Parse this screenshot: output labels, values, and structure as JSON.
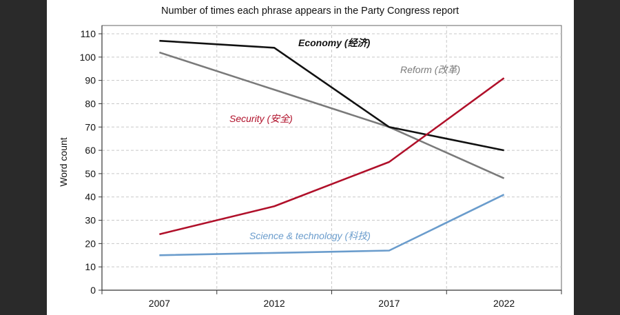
{
  "chart_data": {
    "type": "line",
    "title": "Number of times each phrase appears in the Party Congress report",
    "xlabel": "",
    "ylabel": "Word count",
    "categories": [
      "2007",
      "2012",
      "2017",
      "2022"
    ],
    "ylim": [
      0,
      110
    ],
    "yticks": [
      0,
      10,
      20,
      30,
      40,
      50,
      60,
      70,
      80,
      90,
      100,
      110
    ],
    "grid": true,
    "series": [
      {
        "name": "Economy (经济)",
        "color": "#111111",
        "values": [
          107,
          104,
          70,
          60
        ]
      },
      {
        "name": "Reform (改革)",
        "color": "#7a7a7a",
        "values": [
          102,
          86,
          70,
          48
        ]
      },
      {
        "name": "Security (安全)",
        "color": "#b0102a",
        "values": [
          24,
          36,
          55,
          91
        ]
      },
      {
        "name": "Science & technology (科技)",
        "color": "#6a9ccc",
        "values": [
          15,
          16,
          17,
          41
        ]
      }
    ]
  }
}
